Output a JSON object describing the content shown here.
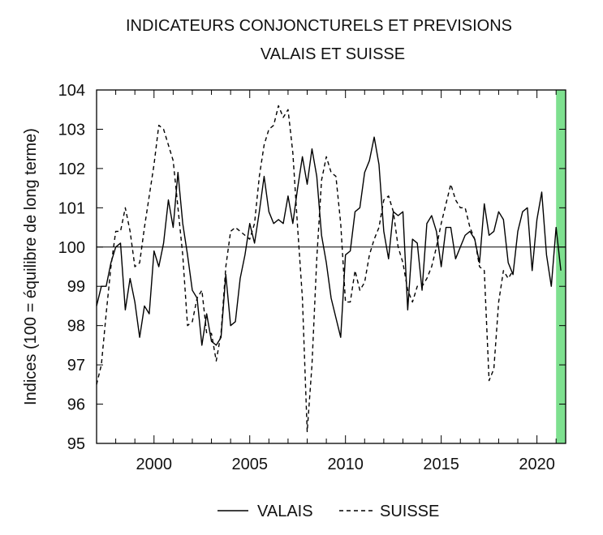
{
  "chart_data": {
    "type": "line",
    "title": "INDICATEURS CONJONCTURELS ET PREVISIONS",
    "subtitle": "VALAIS ET SUISSE",
    "ylabel": "Indices (100 = équilibre de long terme)",
    "xlabel": "",
    "ylim": [
      95,
      104
    ],
    "xlim": [
      1997.0,
      2021.5
    ],
    "y_ticks": [
      "95",
      "96",
      "97",
      "98",
      "99",
      "100",
      "101",
      "102",
      "103",
      "104"
    ],
    "x_ticks": [
      "2000",
      "2005",
      "2010",
      "2015",
      "2020"
    ],
    "reference_line": 100,
    "forecast_band": [
      2021.0,
      2021.5
    ],
    "grid": false,
    "legend_position": "bottom",
    "colors": {
      "valais": "#000000",
      "suisse": "#000000",
      "band": "#7ee08f"
    },
    "series": [
      {
        "name": "VALAIS",
        "style": "solid",
        "points": [
          [
            1997.0,
            98.5
          ],
          [
            1997.25,
            99.0
          ],
          [
            1997.5,
            99.0
          ],
          [
            1997.75,
            99.6
          ],
          [
            1998.0,
            100.0
          ],
          [
            1998.25,
            100.1
          ],
          [
            1998.5,
            98.4
          ],
          [
            1998.75,
            99.2
          ],
          [
            1999.0,
            98.6
          ],
          [
            1999.25,
            97.7
          ],
          [
            1999.5,
            98.5
          ],
          [
            1999.75,
            98.3
          ],
          [
            2000.0,
            99.9
          ],
          [
            2000.25,
            99.5
          ],
          [
            2000.5,
            100.1
          ],
          [
            2000.75,
            101.2
          ],
          [
            2001.0,
            100.5
          ],
          [
            2001.25,
            101.9
          ],
          [
            2001.5,
            100.6
          ],
          [
            2001.75,
            99.8
          ],
          [
            2002.0,
            98.9
          ],
          [
            2002.25,
            98.7
          ],
          [
            2002.5,
            97.5
          ],
          [
            2002.75,
            98.3
          ],
          [
            2003.0,
            97.6
          ],
          [
            2003.25,
            97.5
          ],
          [
            2003.5,
            97.7
          ],
          [
            2003.75,
            99.3
          ],
          [
            2004.0,
            98.0
          ],
          [
            2004.25,
            98.1
          ],
          [
            2004.5,
            99.2
          ],
          [
            2004.75,
            99.8
          ],
          [
            2005.0,
            100.6
          ],
          [
            2005.25,
            100.1
          ],
          [
            2005.5,
            100.9
          ],
          [
            2005.75,
            101.8
          ],
          [
            2006.0,
            100.9
          ],
          [
            2006.25,
            100.6
          ],
          [
            2006.5,
            100.7
          ],
          [
            2006.75,
            100.6
          ],
          [
            2007.0,
            101.3
          ],
          [
            2007.25,
            100.6
          ],
          [
            2007.5,
            101.5
          ],
          [
            2007.75,
            102.3
          ],
          [
            2008.0,
            101.6
          ],
          [
            2008.25,
            102.5
          ],
          [
            2008.5,
            101.8
          ],
          [
            2008.75,
            100.3
          ],
          [
            2009.0,
            99.6
          ],
          [
            2009.25,
            98.7
          ],
          [
            2009.5,
            98.2
          ],
          [
            2009.75,
            97.7
          ],
          [
            2010.0,
            99.8
          ],
          [
            2010.25,
            99.9
          ],
          [
            2010.5,
            100.9
          ],
          [
            2010.75,
            101.0
          ],
          [
            2011.0,
            101.9
          ],
          [
            2011.25,
            102.2
          ],
          [
            2011.5,
            102.8
          ],
          [
            2011.75,
            102.1
          ],
          [
            2012.0,
            100.4
          ],
          [
            2012.25,
            99.7
          ],
          [
            2012.5,
            100.9
          ],
          [
            2012.75,
            100.8
          ],
          [
            2013.0,
            100.9
          ],
          [
            2013.25,
            98.4
          ],
          [
            2013.5,
            100.2
          ],
          [
            2013.75,
            100.1
          ],
          [
            2014.0,
            98.9
          ],
          [
            2014.25,
            100.6
          ],
          [
            2014.5,
            100.8
          ],
          [
            2014.75,
            100.4
          ],
          [
            2015.0,
            99.5
          ],
          [
            2015.25,
            100.5
          ],
          [
            2015.5,
            100.5
          ],
          [
            2015.75,
            99.7
          ],
          [
            2016.0,
            100.0
          ],
          [
            2016.25,
            100.3
          ],
          [
            2016.5,
            100.4
          ],
          [
            2016.75,
            100.2
          ],
          [
            2017.0,
            99.6
          ],
          [
            2017.25,
            101.1
          ],
          [
            2017.5,
            100.3
          ],
          [
            2017.75,
            100.4
          ],
          [
            2018.0,
            100.9
          ],
          [
            2018.25,
            100.7
          ],
          [
            2018.5,
            99.6
          ],
          [
            2018.75,
            99.3
          ],
          [
            2019.0,
            100.4
          ],
          [
            2019.25,
            100.9
          ],
          [
            2019.5,
            101.0
          ],
          [
            2019.75,
            99.4
          ],
          [
            2020.0,
            100.7
          ],
          [
            2020.25,
            101.4
          ],
          [
            2020.5,
            99.8
          ],
          [
            2020.75,
            99.0
          ],
          [
            2021.0,
            100.5
          ],
          [
            2021.25,
            99.4
          ]
        ]
      },
      {
        "name": "SUISSE",
        "style": "dashed",
        "points": [
          [
            1997.0,
            96.5
          ],
          [
            1997.25,
            97.0
          ],
          [
            1997.5,
            98.3
          ],
          [
            1997.75,
            99.5
          ],
          [
            1998.0,
            100.4
          ],
          [
            1998.25,
            100.4
          ],
          [
            1998.5,
            101.0
          ],
          [
            1998.75,
            100.4
          ],
          [
            1999.0,
            99.5
          ],
          [
            1999.25,
            99.6
          ],
          [
            1999.5,
            100.5
          ],
          [
            1999.75,
            101.3
          ],
          [
            2000.0,
            102.1
          ],
          [
            2000.25,
            103.1
          ],
          [
            2000.5,
            103.0
          ],
          [
            2000.75,
            102.6
          ],
          [
            2001.0,
            102.2
          ],
          [
            2001.25,
            101.0
          ],
          [
            2001.5,
            99.8
          ],
          [
            2001.75,
            98.0
          ],
          [
            2002.0,
            98.1
          ],
          [
            2002.25,
            98.7
          ],
          [
            2002.5,
            98.9
          ],
          [
            2002.75,
            97.8
          ],
          [
            2003.0,
            97.8
          ],
          [
            2003.25,
            97.1
          ],
          [
            2003.5,
            97.8
          ],
          [
            2003.75,
            99.5
          ],
          [
            2004.0,
            100.4
          ],
          [
            2004.25,
            100.5
          ],
          [
            2004.5,
            100.4
          ],
          [
            2004.75,
            100.3
          ],
          [
            2005.0,
            100.2
          ],
          [
            2005.25,
            100.6
          ],
          [
            2005.5,
            101.8
          ],
          [
            2005.75,
            102.6
          ],
          [
            2006.0,
            103.0
          ],
          [
            2006.25,
            103.1
          ],
          [
            2006.5,
            103.6
          ],
          [
            2006.75,
            103.3
          ],
          [
            2007.0,
            103.5
          ],
          [
            2007.25,
            102.4
          ],
          [
            2007.5,
            100.5
          ],
          [
            2007.75,
            98.7
          ],
          [
            2008.0,
            95.3
          ],
          [
            2008.25,
            97.0
          ],
          [
            2008.5,
            99.7
          ],
          [
            2008.75,
            101.7
          ],
          [
            2009.0,
            102.3
          ],
          [
            2009.25,
            101.9
          ],
          [
            2009.5,
            101.8
          ],
          [
            2009.75,
            100.6
          ],
          [
            2010.0,
            98.6
          ],
          [
            2010.25,
            98.6
          ],
          [
            2010.5,
            99.4
          ],
          [
            2010.75,
            98.9
          ],
          [
            2011.0,
            99.1
          ],
          [
            2011.25,
            99.8
          ],
          [
            2011.5,
            100.2
          ],
          [
            2011.75,
            100.5
          ],
          [
            2012.0,
            101.2
          ],
          [
            2012.25,
            101.3
          ],
          [
            2012.5,
            100.9
          ],
          [
            2012.75,
            100.0
          ],
          [
            2013.0,
            99.6
          ],
          [
            2013.25,
            98.9
          ],
          [
            2013.5,
            98.6
          ],
          [
            2013.75,
            99.0
          ],
          [
            2014.0,
            99.0
          ],
          [
            2014.25,
            99.2
          ],
          [
            2014.5,
            99.5
          ],
          [
            2014.75,
            100.0
          ],
          [
            2015.0,
            100.6
          ],
          [
            2015.25,
            101.1
          ],
          [
            2015.5,
            101.6
          ],
          [
            2015.75,
            101.2
          ],
          [
            2016.0,
            101.0
          ],
          [
            2016.25,
            101.0
          ],
          [
            2016.5,
            100.5
          ],
          [
            2016.75,
            100.2
          ],
          [
            2017.0,
            99.5
          ],
          [
            2017.25,
            99.4
          ],
          [
            2017.5,
            96.6
          ],
          [
            2017.75,
            96.9
          ],
          [
            2018.0,
            98.6
          ],
          [
            2018.25,
            99.4
          ],
          [
            2018.5,
            99.2
          ],
          [
            2018.75,
            99.4
          ]
        ]
      }
    ]
  }
}
